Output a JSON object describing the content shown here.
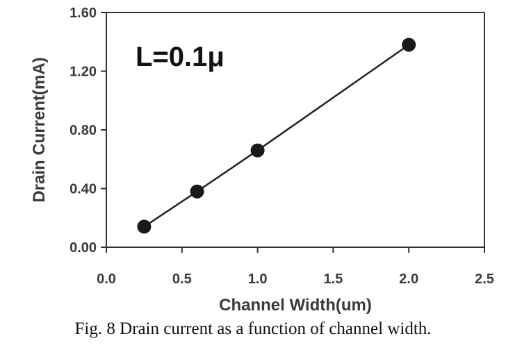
{
  "chart_data": {
    "type": "line",
    "xlabel": "Channel Width(um)",
    "ylabel": "Drain Current(mA)",
    "xlim": [
      0.0,
      2.5
    ],
    "ylim": [
      0.0,
      1.6
    ],
    "xticks": [
      "0.0",
      "0.5",
      "1.0",
      "1.5",
      "2.0",
      "2.5"
    ],
    "yticks": [
      "0.00",
      "0.40",
      "0.80",
      "1.20",
      "1.60"
    ],
    "annotation": "L=0.1μ",
    "grid": false,
    "series": [
      {
        "x": [
          0.25,
          0.6,
          1.0,
          2.0
        ],
        "y": [
          0.14,
          0.38,
          0.66,
          1.38
        ]
      }
    ],
    "colors": {
      "line": "#222222",
      "marker": "#1a1a1a",
      "axis": "#333333"
    }
  },
  "caption": "Fig. 8 Drain current as a function of channel width."
}
